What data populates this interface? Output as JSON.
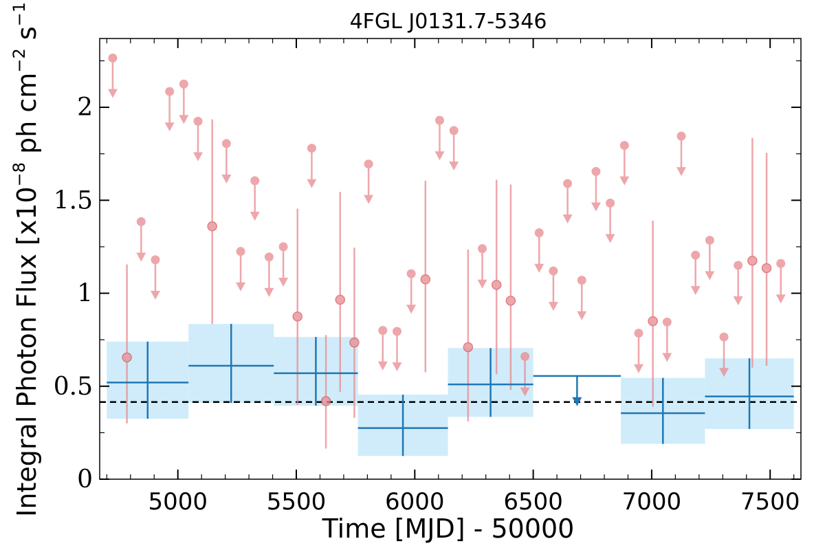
{
  "chart_data": {
    "type": "scatter",
    "title": "4FGL J0131.7-5346",
    "xlabel": "Time [MJD] - 50000",
    "ylabel_main": "Integral Photon Flux [x10",
    "ylabel_exp1": "−8",
    "ylabel_mid": " ph cm",
    "ylabel_exp2": "−2",
    "ylabel_s": " s",
    "ylabel_exp3": "−1",
    "ylabel_end": "]",
    "xlim": [
      4670,
      7630
    ],
    "ylim": [
      0,
      2.37
    ],
    "x_ticks": [
      5000,
      5500,
      6000,
      6500,
      7000,
      7500
    ],
    "y_ticks": [
      0,
      0.5,
      1,
      1.5,
      2
    ],
    "y_tick_labels": [
      "0",
      "0.5",
      "1",
      "1.5",
      "2"
    ],
    "reference_line": {
      "y": 0.415,
      "style": "dashed",
      "color": "#000000"
    },
    "colors": {
      "monthly": "#e88a8f",
      "yearly": "#1f77b4",
      "yearly_band": "#d0ecfa"
    },
    "yearly_bins": [
      {
        "x0": 4700,
        "x1": 5045,
        "y": 0.52,
        "ylo": 0.325,
        "yhi": 0.74
      },
      {
        "x0": 5045,
        "x1": 5405,
        "y": 0.61,
        "ylo": 0.41,
        "yhi": 0.835
      },
      {
        "x0": 5405,
        "x1": 5760,
        "y": 0.57,
        "ylo": 0.395,
        "yhi": 0.765
      },
      {
        "x0": 5760,
        "x1": 6140,
        "y": 0.275,
        "ylo": 0.125,
        "yhi": 0.455
      },
      {
        "x0": 6140,
        "x1": 6500,
        "y": 0.51,
        "ylo": 0.335,
        "yhi": 0.705
      },
      {
        "x0": 6500,
        "x1": 6870,
        "y": 0.555,
        "upper_limit": true
      },
      {
        "x0": 6870,
        "x1": 7225,
        "y": 0.355,
        "ylo": 0.19,
        "yhi": 0.545
      },
      {
        "x0": 7225,
        "x1": 7600,
        "y": 0.445,
        "ylo": 0.27,
        "yhi": 0.65
      }
    ],
    "monthly_upper_limits": [
      {
        "x": 4725,
        "y": 2.265
      },
      {
        "x": 4845,
        "y": 1.385
      },
      {
        "x": 4905,
        "y": 1.18
      },
      {
        "x": 4965,
        "y": 2.085
      },
      {
        "x": 5025,
        "y": 2.125
      },
      {
        "x": 5085,
        "y": 1.925
      },
      {
        "x": 5205,
        "y": 1.805
      },
      {
        "x": 5265,
        "y": 1.225
      },
      {
        "x": 5325,
        "y": 1.605
      },
      {
        "x": 5385,
        "y": 1.195
      },
      {
        "x": 5445,
        "y": 1.25
      },
      {
        "x": 5565,
        "y": 1.78
      },
      {
        "x": 5805,
        "y": 1.695
      },
      {
        "x": 5865,
        "y": 0.8
      },
      {
        "x": 5925,
        "y": 0.795
      },
      {
        "x": 5985,
        "y": 1.105
      },
      {
        "x": 6105,
        "y": 1.93
      },
      {
        "x": 6165,
        "y": 1.875
      },
      {
        "x": 6285,
        "y": 1.24
      },
      {
        "x": 6465,
        "y": 0.66
      },
      {
        "x": 6525,
        "y": 1.325
      },
      {
        "x": 6585,
        "y": 1.12
      },
      {
        "x": 6645,
        "y": 1.59
      },
      {
        "x": 6705,
        "y": 1.07
      },
      {
        "x": 6765,
        "y": 1.655
      },
      {
        "x": 6825,
        "y": 1.485
      },
      {
        "x": 6885,
        "y": 1.795
      },
      {
        "x": 6945,
        "y": 0.785
      },
      {
        "x": 7065,
        "y": 0.845
      },
      {
        "x": 7125,
        "y": 1.845
      },
      {
        "x": 7185,
        "y": 1.205
      },
      {
        "x": 7245,
        "y": 1.285
      },
      {
        "x": 7305,
        "y": 0.765
      },
      {
        "x": 7365,
        "y": 1.15
      },
      {
        "x": 7545,
        "y": 1.16
      }
    ],
    "monthly_detections": [
      {
        "x": 4785,
        "y": 0.655,
        "ylo": 0.3,
        "yhi": 1.155
      },
      {
        "x": 5145,
        "y": 1.36,
        "ylo": 0.835,
        "yhi": 1.935
      },
      {
        "x": 5505,
        "y": 0.875,
        "ylo": 0.4,
        "yhi": 1.455
      },
      {
        "x": 5625,
        "y": 0.42,
        "ylo": 0.165,
        "yhi": 0.775
      },
      {
        "x": 5685,
        "y": 0.965,
        "ylo": 0.47,
        "yhi": 1.545
      },
      {
        "x": 5745,
        "y": 0.735,
        "ylo": 0.33,
        "yhi": 1.245
      },
      {
        "x": 6045,
        "y": 1.075,
        "ylo": 0.575,
        "yhi": 1.605
      },
      {
        "x": 6225,
        "y": 0.71,
        "ylo": 0.31,
        "yhi": 1.235
      },
      {
        "x": 6345,
        "y": 1.045,
        "ylo": 0.565,
        "yhi": 1.61
      },
      {
        "x": 6405,
        "y": 0.96,
        "ylo": 0.48,
        "yhi": 1.585
      },
      {
        "x": 7005,
        "y": 0.85,
        "ylo": 0.39,
        "yhi": 1.39
      },
      {
        "x": 7425,
        "y": 1.175,
        "ylo": 0.6,
        "yhi": 1.835
      },
      {
        "x": 7485,
        "y": 1.135,
        "ylo": 0.61,
        "yhi": 1.755
      }
    ]
  }
}
